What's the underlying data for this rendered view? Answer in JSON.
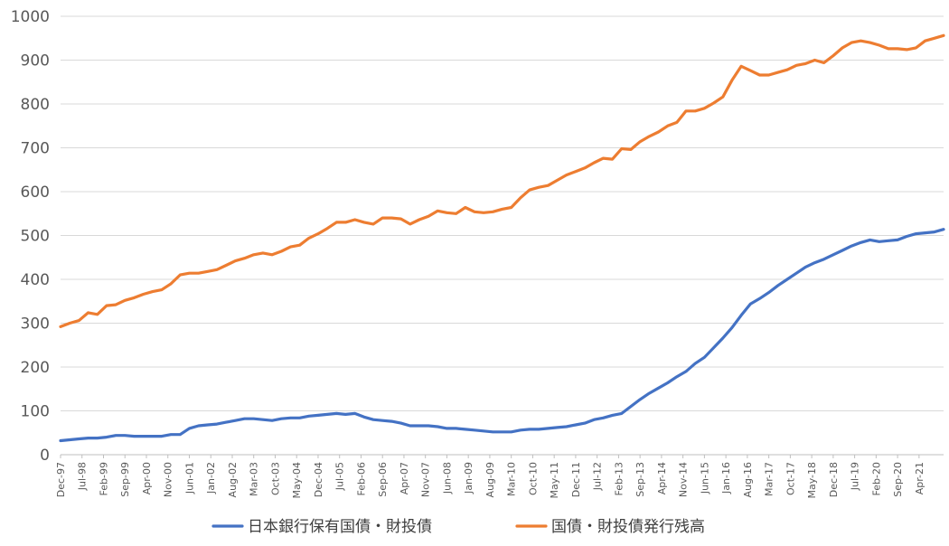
{
  "chart_data": {
    "type": "line",
    "title": "",
    "xlabel": "",
    "ylabel": "",
    "ylim": [
      0,
      1000
    ],
    "yticks": [
      0,
      100,
      200,
      300,
      400,
      500,
      600,
      700,
      800,
      900,
      1000
    ],
    "grid": "horizontal",
    "legend_position": "bottom",
    "x_start": "1997-12",
    "x_end": "2021-12",
    "x_tick_labels": [
      "Dec-97",
      "Jul-98",
      "Feb-99",
      "Sep-99",
      "Apr-00",
      "Nov-00",
      "Jun-01",
      "Jan-02",
      "Aug-02",
      "Mar-03",
      "Oct-03",
      "May-04",
      "Dec-04",
      "Jul-05",
      "Feb-06",
      "Sep-06",
      "Apr-07",
      "Nov-07",
      "Jun-08",
      "Jan-09",
      "Aug-09",
      "Mar-10",
      "Oct-10",
      "May-11",
      "Dec-11",
      "Jul-12",
      "Feb-13",
      "Sep-13",
      "Apr-14",
      "Nov-14",
      "Jun-15",
      "Jan-16",
      "Aug-16",
      "Mar-17",
      "Oct-17",
      "May-18",
      "Dec-18",
      "Jul-19",
      "Feb-20",
      "Sep-20",
      "Apr-21"
    ],
    "series": [
      {
        "name": "日本銀行保有国債・財投債",
        "color": "#4472C4",
        "points": [
          [
            "1997-12",
            32
          ],
          [
            "1998-03",
            34
          ],
          [
            "1998-06",
            36
          ],
          [
            "1998-09",
            38
          ],
          [
            "1998-12",
            38
          ],
          [
            "1999-03",
            40
          ],
          [
            "1999-06",
            44
          ],
          [
            "1999-09",
            44
          ],
          [
            "1999-12",
            42
          ],
          [
            "2000-03",
            42
          ],
          [
            "2000-06",
            42
          ],
          [
            "2000-09",
            42
          ],
          [
            "2000-12",
            46
          ],
          [
            "2001-03",
            46
          ],
          [
            "2001-06",
            60
          ],
          [
            "2001-09",
            66
          ],
          [
            "2001-12",
            68
          ],
          [
            "2002-03",
            70
          ],
          [
            "2002-06",
            74
          ],
          [
            "2002-09",
            78
          ],
          [
            "2002-12",
            82
          ],
          [
            "2003-03",
            82
          ],
          [
            "2003-06",
            80
          ],
          [
            "2003-09",
            78
          ],
          [
            "2003-12",
            82
          ],
          [
            "2004-03",
            84
          ],
          [
            "2004-06",
            84
          ],
          [
            "2004-09",
            88
          ],
          [
            "2004-12",
            90
          ],
          [
            "2005-03",
            92
          ],
          [
            "2005-06",
            94
          ],
          [
            "2005-09",
            92
          ],
          [
            "2005-12",
            94
          ],
          [
            "2006-03",
            86
          ],
          [
            "2006-06",
            80
          ],
          [
            "2006-09",
            78
          ],
          [
            "2006-12",
            76
          ],
          [
            "2007-03",
            72
          ],
          [
            "2007-06",
            66
          ],
          [
            "2007-09",
            66
          ],
          [
            "2007-12",
            66
          ],
          [
            "2008-03",
            64
          ],
          [
            "2008-06",
            60
          ],
          [
            "2008-09",
            60
          ],
          [
            "2008-12",
            58
          ],
          [
            "2009-03",
            56
          ],
          [
            "2009-06",
            54
          ],
          [
            "2009-09",
            52
          ],
          [
            "2009-12",
            52
          ],
          [
            "2010-03",
            52
          ],
          [
            "2010-06",
            56
          ],
          [
            "2010-09",
            58
          ],
          [
            "2010-12",
            58
          ],
          [
            "2011-03",
            60
          ],
          [
            "2011-06",
            62
          ],
          [
            "2011-09",
            64
          ],
          [
            "2011-12",
            68
          ],
          [
            "2012-03",
            72
          ],
          [
            "2012-06",
            80
          ],
          [
            "2012-09",
            84
          ],
          [
            "2012-12",
            90
          ],
          [
            "2013-03",
            94
          ],
          [
            "2013-06",
            110
          ],
          [
            "2013-09",
            126
          ],
          [
            "2013-12",
            140
          ],
          [
            "2014-03",
            152
          ],
          [
            "2014-06",
            164
          ],
          [
            "2014-09",
            178
          ],
          [
            "2014-12",
            190
          ],
          [
            "2015-03",
            208
          ],
          [
            "2015-06",
            222
          ],
          [
            "2015-09",
            244
          ],
          [
            "2015-12",
            266
          ],
          [
            "2016-03",
            290
          ],
          [
            "2016-06",
            318
          ],
          [
            "2016-09",
            344
          ],
          [
            "2016-12",
            356
          ],
          [
            "2017-03",
            370
          ],
          [
            "2017-06",
            386
          ],
          [
            "2017-09",
            400
          ],
          [
            "2017-12",
            414
          ],
          [
            "2018-03",
            428
          ],
          [
            "2018-06",
            438
          ],
          [
            "2018-09",
            446
          ],
          [
            "2018-12",
            456
          ],
          [
            "2019-03",
            466
          ],
          [
            "2019-06",
            476
          ],
          [
            "2019-09",
            484
          ],
          [
            "2019-12",
            490
          ],
          [
            "2020-03",
            486
          ],
          [
            "2020-06",
            488
          ],
          [
            "2020-09",
            490
          ],
          [
            "2020-12",
            498
          ],
          [
            "2021-03",
            504
          ],
          [
            "2021-06",
            506
          ],
          [
            "2021-09",
            508
          ],
          [
            "2021-12",
            514
          ]
        ]
      },
      {
        "name": "国債・財投債発行残高",
        "color": "#ED7D31",
        "points": [
          [
            "1997-12",
            292
          ],
          [
            "1998-03",
            300
          ],
          [
            "1998-06",
            306
          ],
          [
            "1998-09",
            324
          ],
          [
            "1998-12",
            320
          ],
          [
            "1999-03",
            340
          ],
          [
            "1999-06",
            342
          ],
          [
            "1999-09",
            352
          ],
          [
            "1999-12",
            358
          ],
          [
            "2000-03",
            366
          ],
          [
            "2000-06",
            372
          ],
          [
            "2000-09",
            376
          ],
          [
            "2000-12",
            390
          ],
          [
            "2001-03",
            410
          ],
          [
            "2001-06",
            414
          ],
          [
            "2001-09",
            414
          ],
          [
            "2001-12",
            418
          ],
          [
            "2002-03",
            422
          ],
          [
            "2002-06",
            432
          ],
          [
            "2002-09",
            442
          ],
          [
            "2002-12",
            448
          ],
          [
            "2003-03",
            456
          ],
          [
            "2003-06",
            460
          ],
          [
            "2003-09",
            456
          ],
          [
            "2003-12",
            464
          ],
          [
            "2004-03",
            474
          ],
          [
            "2004-06",
            478
          ],
          [
            "2004-09",
            494
          ],
          [
            "2004-12",
            504
          ],
          [
            "2005-03",
            516
          ],
          [
            "2005-06",
            530
          ],
          [
            "2005-09",
            530
          ],
          [
            "2005-12",
            536
          ],
          [
            "2006-03",
            530
          ],
          [
            "2006-06",
            526
          ],
          [
            "2006-09",
            540
          ],
          [
            "2006-12",
            540
          ],
          [
            "2007-03",
            538
          ],
          [
            "2007-06",
            526
          ],
          [
            "2007-09",
            536
          ],
          [
            "2007-12",
            544
          ],
          [
            "2008-03",
            556
          ],
          [
            "2008-06",
            552
          ],
          [
            "2008-09",
            550
          ],
          [
            "2008-12",
            564
          ],
          [
            "2009-03",
            554
          ],
          [
            "2009-06",
            552
          ],
          [
            "2009-09",
            554
          ],
          [
            "2009-12",
            560
          ],
          [
            "2010-03",
            564
          ],
          [
            "2010-06",
            586
          ],
          [
            "2010-09",
            604
          ],
          [
            "2010-12",
            610
          ],
          [
            "2011-03",
            614
          ],
          [
            "2011-06",
            626
          ],
          [
            "2011-09",
            638
          ],
          [
            "2011-12",
            646
          ],
          [
            "2012-03",
            654
          ],
          [
            "2012-06",
            666
          ],
          [
            "2012-09",
            676
          ],
          [
            "2012-12",
            674
          ],
          [
            "2013-03",
            698
          ],
          [
            "2013-06",
            696
          ],
          [
            "2013-09",
            714
          ],
          [
            "2013-12",
            726
          ],
          [
            "2014-03",
            736
          ],
          [
            "2014-06",
            750
          ],
          [
            "2014-09",
            758
          ],
          [
            "2014-12",
            784
          ],
          [
            "2015-03",
            784
          ],
          [
            "2015-06",
            790
          ],
          [
            "2015-09",
            802
          ],
          [
            "2015-12",
            816
          ],
          [
            "2016-03",
            854
          ],
          [
            "2016-06",
            886
          ],
          [
            "2016-09",
            876
          ],
          [
            "2016-12",
            866
          ],
          [
            "2017-03",
            866
          ],
          [
            "2017-06",
            872
          ],
          [
            "2017-09",
            878
          ],
          [
            "2017-12",
            888
          ],
          [
            "2018-03",
            892
          ],
          [
            "2018-06",
            900
          ],
          [
            "2018-09",
            894
          ],
          [
            "2018-12",
            910
          ],
          [
            "2019-03",
            928
          ],
          [
            "2019-06",
            940
          ],
          [
            "2019-09",
            944
          ],
          [
            "2019-12",
            940
          ],
          [
            "2020-03",
            934
          ],
          [
            "2020-06",
            926
          ],
          [
            "2020-09",
            926
          ],
          [
            "2020-12",
            924
          ],
          [
            "2021-03",
            928
          ],
          [
            "2021-06",
            944
          ],
          [
            "2021-09",
            950
          ],
          [
            "2021-12",
            956
          ]
        ]
      }
    ]
  }
}
